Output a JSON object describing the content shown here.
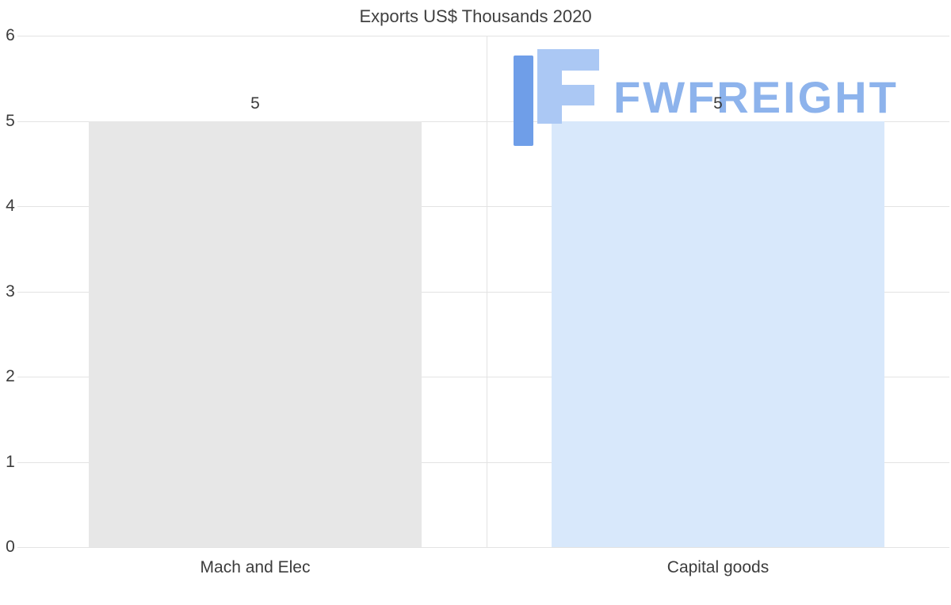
{
  "chart_data": {
    "type": "bar",
    "title": "Exports US$ Thousands 2020",
    "categories": [
      "Mach and Elec",
      "Capital goods"
    ],
    "values": [
      5,
      5
    ],
    "data_labels": [
      "5",
      "5"
    ],
    "bar_colors": [
      "#e7e7e7",
      "#d8e8fb"
    ],
    "ylim": [
      0,
      6
    ],
    "yticks": [
      0,
      1,
      2,
      3,
      4,
      5,
      6
    ],
    "grid": true,
    "legend": false,
    "xlabel": "",
    "ylabel": ""
  },
  "watermark": {
    "text": "FWFREIGHT",
    "logo_color_dark": "#6f9ee8",
    "logo_color_light": "#abc8f4",
    "text_color": "#8db3ec"
  },
  "colors": {
    "background": "#ffffff",
    "grid": "#e3e3e3",
    "axis_text": "#3c3c3c",
    "title_text": "#404040"
  }
}
